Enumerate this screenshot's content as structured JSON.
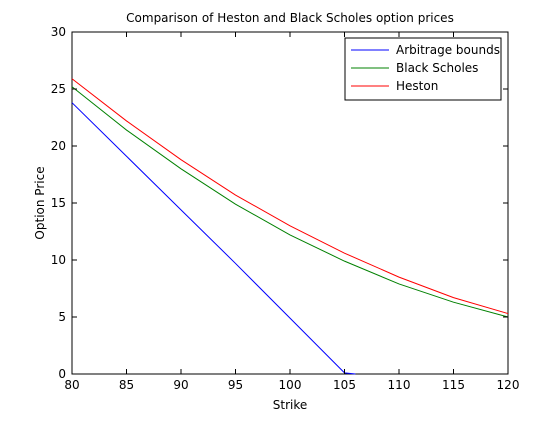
{
  "chart_data": {
    "type": "line",
    "title": "Comparison of Heston and Black Scholes option prices",
    "xlabel": "Strike",
    "ylabel": "Option Price",
    "xlim": [
      80,
      120
    ],
    "ylim": [
      0,
      30
    ],
    "xticks": [
      80,
      85,
      90,
      95,
      100,
      105,
      110,
      115,
      120
    ],
    "yticks": [
      0,
      5,
      10,
      15,
      20,
      25,
      30
    ],
    "grid": false,
    "legend_position": "top-right",
    "series": [
      {
        "name": "Arbitrage bounds",
        "color": "#0000ff",
        "x": [
          80,
          85,
          90,
          95,
          100,
          105,
          106
        ],
        "y": [
          23.8,
          19.1,
          14.4,
          9.7,
          4.9,
          0.1,
          0
        ]
      },
      {
        "name": "Black Scholes",
        "color": "#008000",
        "x": [
          80,
          85,
          90,
          95,
          100,
          105,
          110,
          115,
          120
        ],
        "y": [
          25.2,
          21.4,
          18.0,
          14.9,
          12.2,
          9.9,
          7.9,
          6.3,
          5.0
        ]
      },
      {
        "name": "Heston",
        "color": "#ff0000",
        "x": [
          80,
          85,
          90,
          95,
          100,
          105,
          110,
          115,
          120
        ],
        "y": [
          25.9,
          22.2,
          18.8,
          15.7,
          13.0,
          10.6,
          8.5,
          6.7,
          5.3
        ]
      }
    ]
  }
}
